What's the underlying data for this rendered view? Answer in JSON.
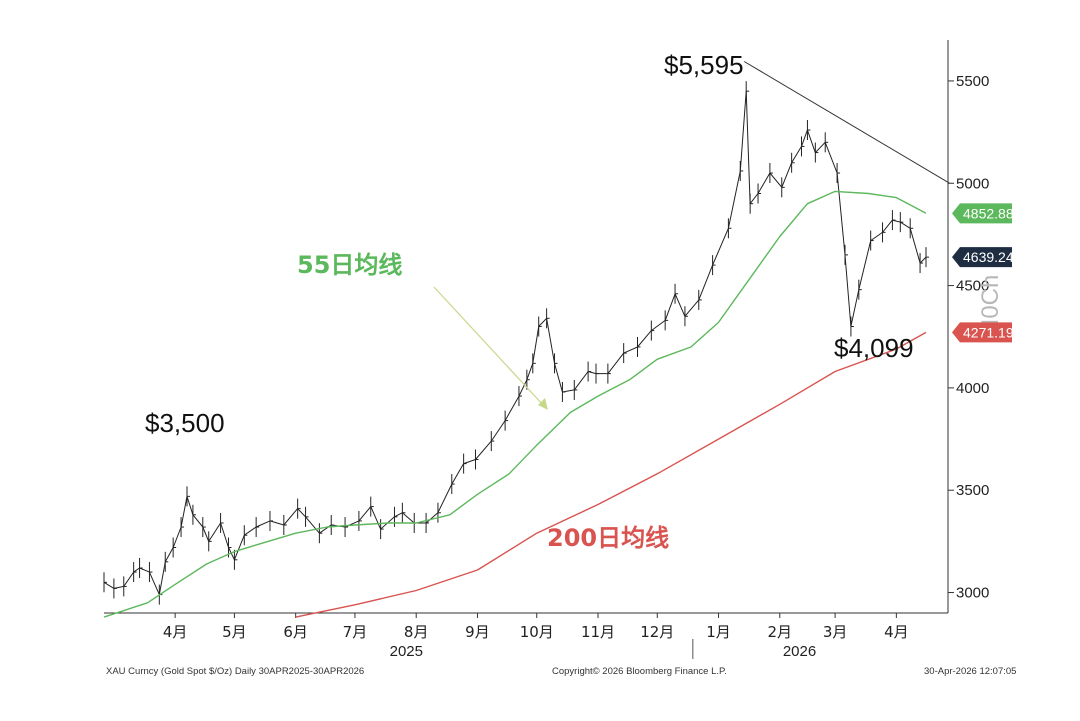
{
  "chart_data": {
    "type": "line",
    "title": "",
    "instrument": "XAU Curncy (Gold Spot  $/Oz) Daily 30APR2025-30APR2026",
    "copyright": "Copyright© 2026 Bloomberg Finance L.P.",
    "timestamp": "30-Apr-2026 12:07:05",
    "ylim": [
      2900,
      5700
    ],
    "yticks": [
      3000,
      3500,
      4000,
      4500,
      5000,
      5500
    ],
    "yaxis_side": "right",
    "xlim": [
      "2025-03-10",
      "2026-04-30"
    ],
    "months": [
      {
        "label": "4月",
        "date": "2025-04-15"
      },
      {
        "label": "5月",
        "date": "2025-05-15"
      },
      {
        "label": "6月",
        "date": "2025-06-15"
      },
      {
        "label": "7月",
        "date": "2025-07-15"
      },
      {
        "label": "8月",
        "date": "2025-08-15"
      },
      {
        "label": "9月",
        "date": "2025-09-15"
      },
      {
        "label": "10月",
        "date": "2025-10-15"
      },
      {
        "label": "11月",
        "date": "2025-11-15"
      },
      {
        "label": "12月",
        "date": "2025-12-15"
      },
      {
        "label": "1月",
        "date": "2026-01-15"
      },
      {
        "label": "2月",
        "date": "2026-02-15"
      },
      {
        "label": "3月",
        "date": "2026-03-15"
      },
      {
        "label": "4月",
        "date": "2026-04-15"
      }
    ],
    "years": [
      {
        "label": "2025",
        "date": "2025-08-10"
      },
      {
        "label": "2026",
        "date": "2026-02-25"
      }
    ],
    "year_divider_date": "2026-01-02",
    "series": [
      {
        "kind": "price",
        "color": "#222222",
        "points": [
          [
            "2025-03-10",
            3050
          ],
          [
            "2025-03-15",
            3020
          ],
          [
            "2025-03-20",
            3030
          ],
          [
            "2025-03-25",
            3100
          ],
          [
            "2025-03-28",
            3120
          ],
          [
            "2025-04-02",
            3100
          ],
          [
            "2025-04-07",
            2990
          ],
          [
            "2025-04-10",
            3150
          ],
          [
            "2025-04-14",
            3220
          ],
          [
            "2025-04-18",
            3320
          ],
          [
            "2025-04-21",
            3470
          ],
          [
            "2025-04-24",
            3380
          ],
          [
            "2025-04-29",
            3320
          ],
          [
            "2025-05-02",
            3250
          ],
          [
            "2025-05-08",
            3340
          ],
          [
            "2025-05-12",
            3220
          ],
          [
            "2025-05-15",
            3160
          ],
          [
            "2025-05-20",
            3280
          ],
          [
            "2025-05-26",
            3320
          ],
          [
            "2025-06-02",
            3350
          ],
          [
            "2025-06-09",
            3330
          ],
          [
            "2025-06-16",
            3410
          ],
          [
            "2025-06-20",
            3370
          ],
          [
            "2025-06-27",
            3290
          ],
          [
            "2025-07-03",
            3330
          ],
          [
            "2025-07-10",
            3320
          ],
          [
            "2025-07-17",
            3350
          ],
          [
            "2025-07-23",
            3420
          ],
          [
            "2025-07-28",
            3310
          ],
          [
            "2025-08-04",
            3370
          ],
          [
            "2025-08-08",
            3390
          ],
          [
            "2025-08-14",
            3340
          ],
          [
            "2025-08-20",
            3340
          ],
          [
            "2025-08-26",
            3390
          ],
          [
            "2025-09-02",
            3530
          ],
          [
            "2025-09-08",
            3630
          ],
          [
            "2025-09-14",
            3650
          ],
          [
            "2025-09-22",
            3740
          ],
          [
            "2025-09-29",
            3840
          ],
          [
            "2025-10-06",
            3960
          ],
          [
            "2025-10-10",
            4040
          ],
          [
            "2025-10-13",
            4120
          ],
          [
            "2025-10-16",
            4300
          ],
          [
            "2025-10-20",
            4340
          ],
          [
            "2025-10-24",
            4120
          ],
          [
            "2025-10-28",
            3980
          ],
          [
            "2025-11-03",
            3990
          ],
          [
            "2025-11-10",
            4080
          ],
          [
            "2025-11-14",
            4070
          ],
          [
            "2025-11-20",
            4070
          ],
          [
            "2025-11-28",
            4170
          ],
          [
            "2025-12-05",
            4200
          ],
          [
            "2025-12-12",
            4280
          ],
          [
            "2025-12-19",
            4330
          ],
          [
            "2025-12-24",
            4460
          ],
          [
            "2025-12-29",
            4350
          ],
          [
            "2026-01-05",
            4430
          ],
          [
            "2026-01-12",
            4600
          ],
          [
            "2026-01-20",
            4780
          ],
          [
            "2026-01-26",
            5060
          ],
          [
            "2026-01-29",
            5450
          ],
          [
            "2026-01-31",
            4900
          ],
          [
            "2026-02-04",
            4950
          ],
          [
            "2026-02-10",
            5050
          ],
          [
            "2026-02-16",
            4980
          ],
          [
            "2026-02-21",
            5100
          ],
          [
            "2026-02-26",
            5180
          ],
          [
            "2026-03-01",
            5260
          ],
          [
            "2026-03-05",
            5150
          ],
          [
            "2026-03-10",
            5200
          ],
          [
            "2026-03-16",
            5050
          ],
          [
            "2026-03-20",
            4650
          ],
          [
            "2026-03-23",
            4300
          ],
          [
            "2026-03-27",
            4480
          ],
          [
            "2026-04-02",
            4720
          ],
          [
            "2026-04-08",
            4760
          ],
          [
            "2026-04-13",
            4820
          ],
          [
            "2026-04-17",
            4810
          ],
          [
            "2026-04-22",
            4780
          ],
          [
            "2026-04-27",
            4610
          ],
          [
            "2026-04-30",
            4639
          ]
        ]
      },
      {
        "name": "55日均线",
        "color": "#5cb85c",
        "points": [
          [
            "2025-03-10",
            2880
          ],
          [
            "2025-04-01",
            2950
          ],
          [
            "2025-04-15",
            3040
          ],
          [
            "2025-05-01",
            3140
          ],
          [
            "2025-05-15",
            3200
          ],
          [
            "2025-06-01",
            3250
          ],
          [
            "2025-06-15",
            3290
          ],
          [
            "2025-07-01",
            3320
          ],
          [
            "2025-07-15",
            3330
          ],
          [
            "2025-08-01",
            3340
          ],
          [
            "2025-08-15",
            3340
          ],
          [
            "2025-09-01",
            3380
          ],
          [
            "2025-09-15",
            3480
          ],
          [
            "2025-10-01",
            3580
          ],
          [
            "2025-10-15",
            3720
          ],
          [
            "2025-11-01",
            3880
          ],
          [
            "2025-11-15",
            3960
          ],
          [
            "2025-12-01",
            4040
          ],
          [
            "2025-12-15",
            4140
          ],
          [
            "2026-01-01",
            4200
          ],
          [
            "2026-01-15",
            4320
          ],
          [
            "2026-02-01",
            4550
          ],
          [
            "2026-02-15",
            4740
          ],
          [
            "2026-03-01",
            4900
          ],
          [
            "2026-03-15",
            4960
          ],
          [
            "2026-04-01",
            4950
          ],
          [
            "2026-04-15",
            4930
          ],
          [
            "2026-04-30",
            4853
          ]
        ]
      },
      {
        "name": "200日均线",
        "color": "#d9534f",
        "points": [
          [
            "2025-06-15",
            2880
          ],
          [
            "2025-07-15",
            2940
          ],
          [
            "2025-08-15",
            3010
          ],
          [
            "2025-09-15",
            3110
          ],
          [
            "2025-10-15",
            3290
          ],
          [
            "2025-11-15",
            3430
          ],
          [
            "2025-12-15",
            3580
          ],
          [
            "2026-01-15",
            3750
          ],
          [
            "2026-02-15",
            3920
          ],
          [
            "2026-03-15",
            4080
          ],
          [
            "2026-04-15",
            4190
          ],
          [
            "2026-04-30",
            4271
          ]
        ]
      },
      {
        "kind": "trendline",
        "color": "#333333",
        "points": [
          [
            "2026-01-28",
            5595
          ],
          [
            "2026-05-12",
            5000
          ]
        ]
      }
    ],
    "annotations": [
      {
        "text": "$3,500",
        "date": "2025-04-21",
        "value": 3500
      },
      {
        "text": "$5,595",
        "date": "2026-01-28",
        "value": 5595
      },
      {
        "text": "$4,099",
        "date": "2026-03-23",
        "value": 4099
      }
    ],
    "price_tags": [
      {
        "value": 4852.88,
        "text": "4852.88",
        "color": "#5cb85c"
      },
      {
        "value": 4639.24,
        "text": "4639.24",
        "color": "#1e2d42"
      },
      {
        "value": 4271.19,
        "text": "4271.19",
        "color": "#d9534f"
      }
    ],
    "ma_labels": [
      {
        "text": "55日均线",
        "color": "#5cb85c"
      },
      {
        "text": "200日均线",
        "color": "#d9534f"
      }
    ],
    "vertical_logo": "I0Ch"
  }
}
